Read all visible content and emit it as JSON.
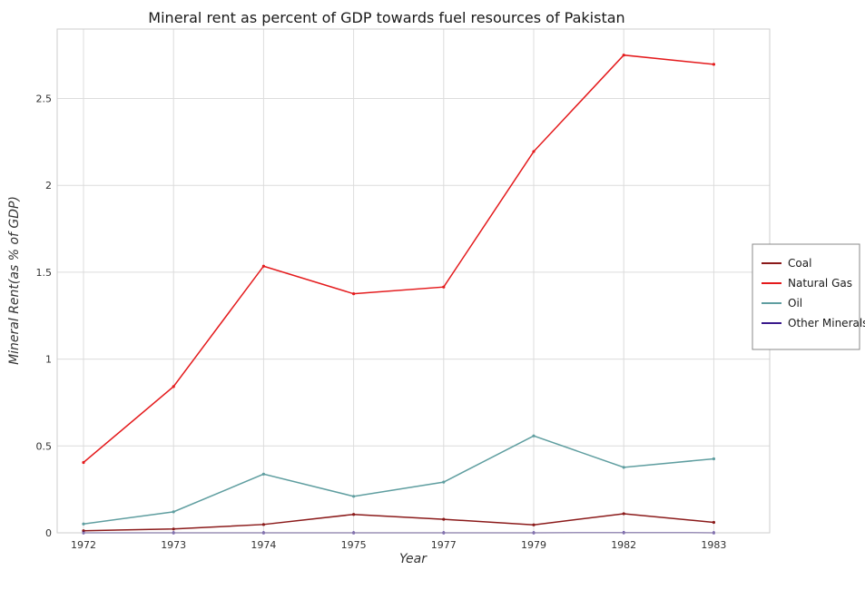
{
  "chart_data": {
    "type": "line",
    "title": "Mineral rent as percent of GDP towards fuel resources of Pakistan",
    "xlabel": "Year",
    "ylabel": "Mineral Rent(as % of GDP)",
    "categories": [
      "1972",
      "1973",
      "1974",
      "1975",
      "1977",
      "1979",
      "1982",
      "1983"
    ],
    "ylim": [
      0,
      2.9
    ],
    "yticks": [
      "0",
      "0.5",
      "1",
      "1.5",
      "2",
      "2.5"
    ],
    "grid": true,
    "legend_position": "right",
    "series": [
      {
        "name": "Coal",
        "color": "#8b1a1a",
        "values": [
          0.012,
          0.022,
          0.048,
          0.106,
          0.078,
          0.046,
          0.11,
          0.06
        ]
      },
      {
        "name": "Natural Gas",
        "color": "#e41a1c",
        "values": [
          0.405,
          0.842,
          1.535,
          1.376,
          1.415,
          2.195,
          2.75,
          2.697
        ]
      },
      {
        "name": "Oil",
        "color": "#5f9ea0",
        "values": [
          0.051,
          0.121,
          0.338,
          0.21,
          0.292,
          0.558,
          0.377,
          0.426
        ]
      },
      {
        "name": "Other Minerals",
        "color": "#3a1a8c",
        "values": [
          0.0003,
          0.0003,
          0.0003,
          0.0003,
          0.0003,
          0.0003,
          0.0005,
          0.0003
        ]
      }
    ]
  }
}
